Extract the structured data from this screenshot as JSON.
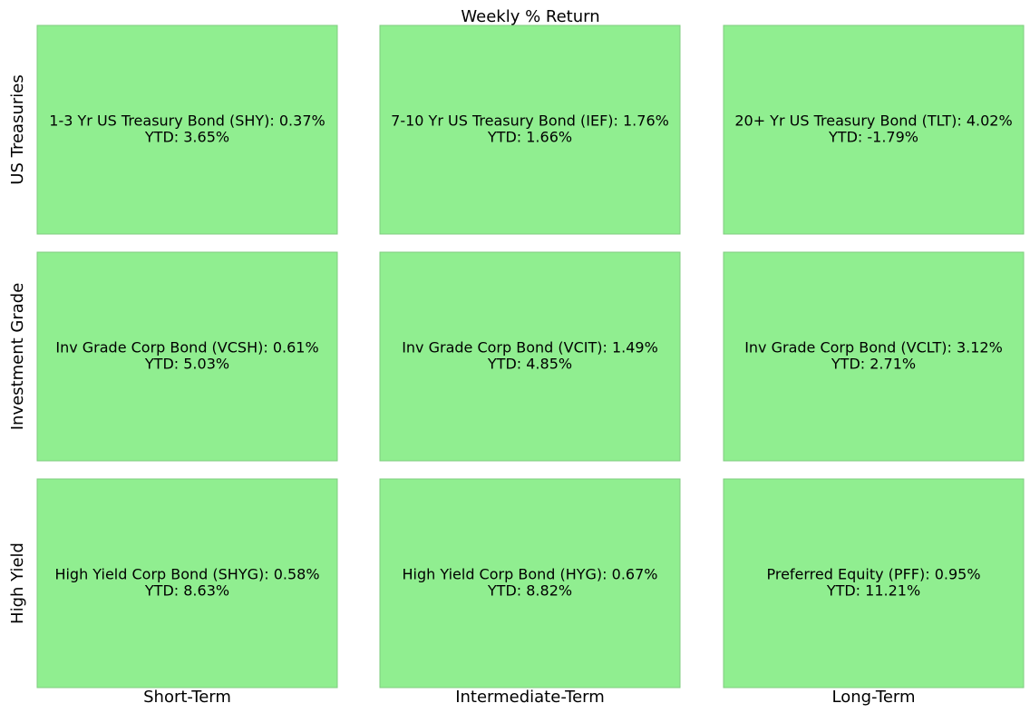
{
  "title": "Weekly % Return",
  "row_labels": [
    "US Treasuries",
    "Investment Grade",
    "High Yield"
  ],
  "column_labels": [
    "Short-Term",
    "Intermediate-Term",
    "Long-Term"
  ],
  "cells": [
    [
      {
        "line1": "1-3 Yr US Treasury Bond (SHY): 0.37%",
        "line2": "YTD: 3.65%"
      },
      {
        "line1": "7-10 Yr US Treasury Bond (IEF): 1.76%",
        "line2": "YTD: 1.66%"
      },
      {
        "line1": "20+ Yr US Treasury Bond (TLT): 4.02%",
        "line2": "YTD: -1.79%"
      }
    ],
    [
      {
        "line1": "Inv Grade Corp Bond (VCSH): 0.61%",
        "line2": "YTD: 5.03%"
      },
      {
        "line1": "Inv Grade Corp Bond (VCIT): 1.49%",
        "line2": "YTD: 4.85%"
      },
      {
        "line1": "Inv Grade Corp Bond (VCLT): 3.12%",
        "line2": "YTD: 2.71%"
      }
    ],
    [
      {
        "line1": "High Yield Corp Bond (SHYG): 0.58%",
        "line2": "YTD: 8.63%"
      },
      {
        "line1": "High Yield Corp Bond (HYG): 0.67%",
        "line2": "YTD: 8.82%"
      },
      {
        "line1": "Preferred Equity (PFF): 0.95%",
        "line2": "YTD: 11.21%"
      }
    ]
  ]
}
